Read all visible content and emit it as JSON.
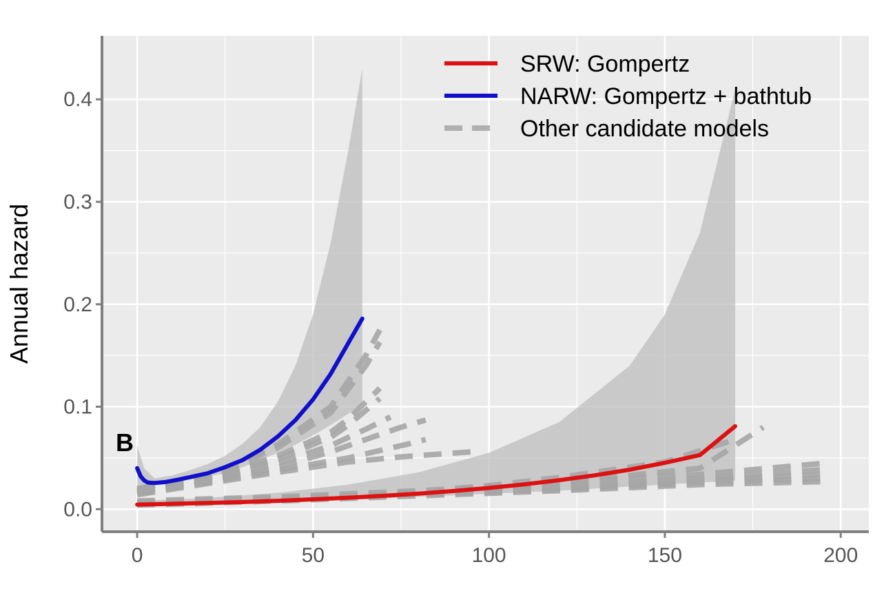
{
  "chart_data": {
    "type": "line",
    "title": "",
    "panel_label": "B",
    "xlabel": "",
    "ylabel": "Annual hazard",
    "xlim": [
      -10,
      208
    ],
    "ylim": [
      -0.022,
      0.462
    ],
    "x_ticks": [
      0,
      50,
      100,
      150,
      200
    ],
    "y_ticks": [
      0.0,
      0.1,
      0.2,
      0.3,
      0.4
    ],
    "x_tick_labels": [
      "0",
      "50",
      "100",
      "150",
      "200"
    ],
    "y_tick_labels": [
      "0.0",
      "0.1",
      "0.2",
      "0.3",
      "0.4"
    ],
    "grid": true,
    "legend_position": "top-right",
    "colors": {
      "panel_bg": "#ebebeb",
      "grid": "#ffffff",
      "axis": "#7f7f7f",
      "ribbon": "#bdbdbd",
      "other": "#a6a6a6"
    },
    "legend": [
      {
        "label": "SRW: Gompertz",
        "color": "#dd1111",
        "style": "solid"
      },
      {
        "label": "NARW: Gompertz + bathtub",
        "color": "#1010cc",
        "style": "solid"
      },
      {
        "label": "Other candidate models",
        "color": "#b0b0b0",
        "style": "dashed"
      }
    ],
    "ribbons": [
      {
        "x": [
          0,
          2,
          5,
          10,
          15,
          20,
          25,
          30,
          35,
          40,
          45,
          50,
          55,
          60,
          64
        ],
        "lower": [
          0.012,
          0.022,
          0.024,
          0.026,
          0.029,
          0.032,
          0.035,
          0.041,
          0.048,
          0.055,
          0.063,
          0.072,
          0.082,
          0.093,
          0.102
        ],
        "upper": [
          0.062,
          0.04,
          0.03,
          0.033,
          0.038,
          0.044,
          0.052,
          0.064,
          0.08,
          0.105,
          0.14,
          0.19,
          0.26,
          0.35,
          0.43
        ]
      },
      {
        "x": [
          0,
          20,
          40,
          60,
          80,
          100,
          120,
          140,
          150,
          160,
          170
        ],
        "lower": [
          0.002,
          0.004,
          0.006,
          0.009,
          0.012,
          0.015,
          0.018,
          0.022,
          0.024,
          0.026,
          0.028
        ],
        "upper": [
          0.008,
          0.011,
          0.016,
          0.024,
          0.036,
          0.055,
          0.085,
          0.14,
          0.19,
          0.27,
          0.41
        ]
      }
    ],
    "series": [
      {
        "name": "SRW: Gompertz",
        "color": "#dd1111",
        "style": "solid",
        "x": [
          0,
          10,
          20,
          30,
          40,
          50,
          60,
          70,
          80,
          90,
          100,
          110,
          120,
          130,
          140,
          150,
          160,
          170
        ],
        "y": [
          0.0045,
          0.0052,
          0.006,
          0.007,
          0.0082,
          0.0096,
          0.0112,
          0.013,
          0.0152,
          0.0177,
          0.0207,
          0.0242,
          0.0283,
          0.033,
          0.0386,
          0.0452,
          0.0528,
          0.081
        ]
      },
      {
        "name": "NARW: Gompertz + bathtub",
        "color": "#1010cc",
        "style": "solid",
        "x": [
          0,
          1,
          2,
          3,
          5,
          8,
          12,
          16,
          20,
          25,
          30,
          35,
          40,
          45,
          50,
          55,
          60,
          64
        ],
        "y": [
          0.04,
          0.032,
          0.028,
          0.026,
          0.0255,
          0.0265,
          0.029,
          0.032,
          0.035,
          0.041,
          0.048,
          0.058,
          0.071,
          0.087,
          0.107,
          0.132,
          0.162,
          0.186
        ]
      }
    ],
    "other_models": [
      {
        "x": [
          0,
          20,
          40,
          55,
          65,
          69
        ],
        "y": [
          0.02,
          0.032,
          0.063,
          0.1,
          0.15,
          0.175
        ]
      },
      {
        "x": [
          0,
          20,
          40,
          55,
          65,
          69
        ],
        "y": [
          0.02,
          0.031,
          0.06,
          0.094,
          0.14,
          0.163
        ]
      },
      {
        "x": [
          0,
          20,
          40,
          55,
          60,
          69
        ],
        "y": [
          0.018,
          0.03,
          0.052,
          0.075,
          0.088,
          0.118
        ]
      },
      {
        "x": [
          0,
          20,
          40,
          55,
          60,
          69
        ],
        "y": [
          0.018,
          0.029,
          0.049,
          0.07,
          0.082,
          0.108
        ]
      },
      {
        "x": [
          0,
          20,
          40,
          55,
          65,
          72
        ],
        "y": [
          0.017,
          0.028,
          0.045,
          0.062,
          0.078,
          0.09
        ]
      },
      {
        "x": [
          0,
          20,
          40,
          55,
          65,
          75,
          82
        ],
        "y": [
          0.016,
          0.027,
          0.041,
          0.056,
          0.068,
          0.08,
          0.087
        ]
      },
      {
        "x": [
          0,
          20,
          40,
          60,
          70,
          80,
          82
        ],
        "y": [
          0.015,
          0.026,
          0.038,
          0.05,
          0.058,
          0.066,
          0.068
        ]
      },
      {
        "x": [
          0,
          20,
          40,
          60,
          75,
          95
        ],
        "y": [
          0.014,
          0.025,
          0.036,
          0.046,
          0.051,
          0.056
        ]
      },
      {
        "x": [
          0,
          20,
          40,
          60,
          80,
          100,
          120,
          150,
          170
        ],
        "y": [
          0.004,
          0.006,
          0.009,
          0.013,
          0.017,
          0.023,
          0.031,
          0.046,
          0.068
        ]
      },
      {
        "x": [
          0,
          40,
          80,
          120,
          160,
          178
        ],
        "y": [
          0.006,
          0.01,
          0.017,
          0.026,
          0.04,
          0.08
        ]
      },
      {
        "x": [
          0,
          40,
          80,
          120,
          160,
          196
        ],
        "y": [
          0.008,
          0.012,
          0.018,
          0.026,
          0.034,
          0.045
        ]
      },
      {
        "x": [
          0,
          40,
          80,
          120,
          160,
          196
        ],
        "y": [
          0.007,
          0.011,
          0.016,
          0.022,
          0.03,
          0.039
        ]
      },
      {
        "x": [
          0,
          40,
          80,
          120,
          160,
          196
        ],
        "y": [
          0.006,
          0.01,
          0.015,
          0.02,
          0.028,
          0.034
        ]
      },
      {
        "x": [
          0,
          40,
          80,
          120,
          160,
          196
        ],
        "y": [
          0.005,
          0.009,
          0.014,
          0.019,
          0.026,
          0.03
        ]
      },
      {
        "x": [
          0,
          40,
          80,
          120,
          160,
          196
        ],
        "y": [
          0.004,
          0.008,
          0.013,
          0.018,
          0.024,
          0.027
        ]
      }
    ]
  }
}
